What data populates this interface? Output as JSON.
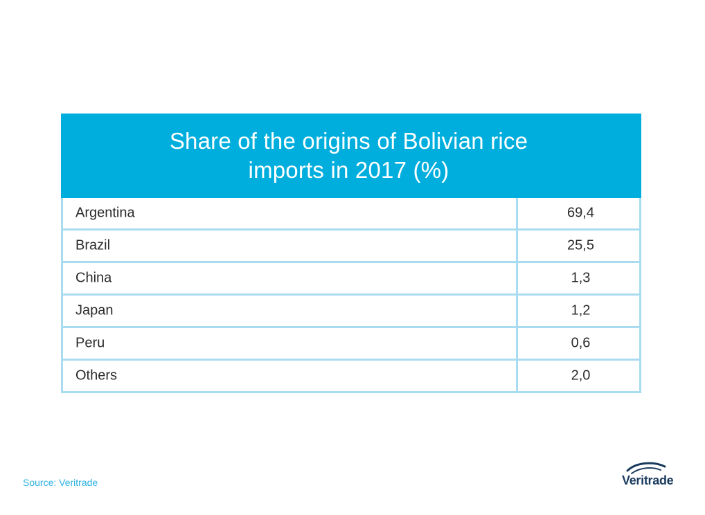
{
  "chart_data": {
    "type": "table",
    "title": "Share of the origins of Bolivian rice imports in 2017 (%)",
    "rows": [
      {
        "country": "Argentina",
        "value": "69,4"
      },
      {
        "country": "Brazil",
        "value": "25,5"
      },
      {
        "country": "China",
        "value": "1,3"
      },
      {
        "country": "Japan",
        "value": "1,2"
      },
      {
        "country": "Peru",
        "value": "0,6"
      },
      {
        "country": "Others",
        "value": "2,0"
      }
    ]
  },
  "footer": {
    "source": "Source: Veritrade",
    "logo_text": "Veritrade"
  },
  "colors": {
    "header": "#00aedd",
    "border": "#a9dcf0",
    "source_text": "#2bb0e0",
    "logo": "#1a3a5c"
  },
  "icons": {
    "logo": "veritrade-swoosh-logo"
  }
}
